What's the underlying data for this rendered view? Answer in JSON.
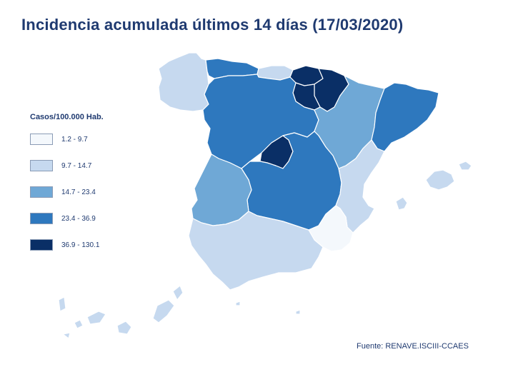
{
  "title": "Incidencia acumulada últimos 14 días (17/03/2020)",
  "legend": {
    "title": "Casos/100.000 Hab.",
    "items": [
      {
        "label": "1.2 - 9.7",
        "color": "#f4f8fc"
      },
      {
        "label": "9.7 - 14.7",
        "color": "#c6d9ef"
      },
      {
        "label": "14.7 - 23.4",
        "color": "#6fa8d6"
      },
      {
        "label": "23.4 - 36.9",
        "color": "#2e78be"
      },
      {
        "label": "36.9 - 130.1",
        "color": "#0a2f66"
      }
    ]
  },
  "source": "Fuente: RENAVE.ISCIII-CCAES",
  "regions": [
    {
      "name": "Galicia",
      "class": "9.7 - 14.7"
    },
    {
      "name": "Asturias",
      "class": "23.4 - 36.9"
    },
    {
      "name": "Cantabria",
      "class": "9.7 - 14.7"
    },
    {
      "name": "País Vasco",
      "class": "36.9 - 130.1"
    },
    {
      "name": "Navarra",
      "class": "36.9 - 130.1"
    },
    {
      "name": "La Rioja",
      "class": "36.9 - 130.1"
    },
    {
      "name": "Aragón",
      "class": "14.7 - 23.4"
    },
    {
      "name": "Cataluña",
      "class": "23.4 - 36.9"
    },
    {
      "name": "Castilla y León",
      "class": "23.4 - 36.9"
    },
    {
      "name": "Madrid",
      "class": "36.9 - 130.1"
    },
    {
      "name": "Castilla-La Mancha",
      "class": "23.4 - 36.9"
    },
    {
      "name": "Extremadura",
      "class": "14.7 - 23.4"
    },
    {
      "name": "Comunitat Valenciana",
      "class": "9.7 - 14.7"
    },
    {
      "name": "Región de Murcia",
      "class": "1.2 - 9.7"
    },
    {
      "name": "Andalucía",
      "class": "9.7 - 14.7"
    },
    {
      "name": "Illes Balears",
      "class": "9.7 - 14.7"
    },
    {
      "name": "Canarias",
      "class": "9.7 - 14.7"
    },
    {
      "name": "Ceuta",
      "class": "9.7 - 14.7"
    },
    {
      "name": "Melilla",
      "class": "9.7 - 14.7"
    }
  ]
}
